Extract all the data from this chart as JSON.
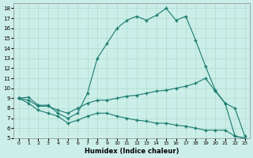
{
  "xlabel": "Humidex (Indice chaleur)",
  "bg_color": "#cceee8",
  "grid_color": "#aaddcc",
  "line_color": "#1a7a6e",
  "xlim": [
    -0.5,
    23.5
  ],
  "ylim": [
    5,
    18.5
  ],
  "xticks": [
    0,
    1,
    2,
    3,
    4,
    5,
    6,
    7,
    8,
    9,
    10,
    11,
    12,
    13,
    14,
    15,
    16,
    17,
    18,
    19,
    20,
    21,
    22,
    23
  ],
  "yticks": [
    5,
    6,
    7,
    8,
    9,
    10,
    11,
    12,
    13,
    14,
    15,
    16,
    17,
    18
  ],
  "line1_x": [
    0,
    1,
    2,
    3,
    4,
    5,
    6,
    7,
    8,
    9,
    10,
    11,
    12,
    13,
    14,
    15,
    16,
    17,
    18,
    19,
    20,
    21,
    22,
    23
  ],
  "line1_y": [
    9.0,
    9.1,
    8.3,
    8.3,
    7.5,
    7.0,
    7.5,
    9.5,
    13.0,
    14.5,
    16.0,
    16.8,
    17.2,
    16.8,
    17.3,
    18.0,
    16.8,
    17.2,
    14.8,
    12.2,
    9.8,
    8.5,
    5.2,
    5.0
  ],
  "line2_x": [
    0,
    1,
    2,
    3,
    4,
    5,
    6,
    7,
    8,
    9,
    10,
    11,
    12,
    13,
    14,
    15,
    16,
    17,
    18,
    19,
    20,
    21,
    22,
    23
  ],
  "line2_y": [
    9.0,
    8.8,
    8.2,
    8.2,
    7.8,
    7.5,
    8.0,
    8.5,
    8.8,
    8.8,
    9.0,
    9.2,
    9.3,
    9.5,
    9.7,
    9.8,
    10.0,
    10.2,
    10.5,
    11.0,
    9.7,
    8.5,
    8.0,
    5.2
  ],
  "line3_x": [
    0,
    1,
    2,
    3,
    4,
    5,
    6,
    7,
    8,
    9,
    10,
    11,
    12,
    13,
    14,
    15,
    16,
    17,
    18,
    19,
    20,
    21,
    22,
    23
  ],
  "line3_y": [
    9.0,
    8.5,
    7.8,
    7.5,
    7.2,
    6.5,
    6.8,
    7.2,
    7.5,
    7.5,
    7.2,
    7.0,
    6.8,
    6.7,
    6.5,
    6.5,
    6.3,
    6.2,
    6.0,
    5.8,
    5.8,
    5.8,
    5.2,
    5.0
  ]
}
